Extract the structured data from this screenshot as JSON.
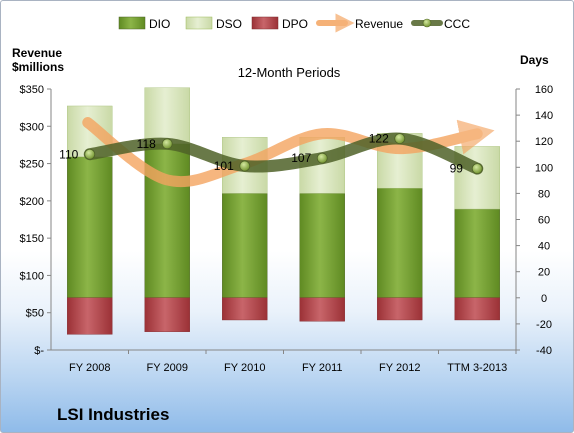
{
  "company": "LSI Industries",
  "chart_data": {
    "type": "bar",
    "subtitle": "12-Month Periods",
    "categories": [
      "FY 2008",
      "FY 2009",
      "FY 2010",
      "FY 2011",
      "FY 2012",
      "TTM 3-2013"
    ],
    "left_axis": {
      "label_line1": "Revenue",
      "label_line2": "$millions",
      "ylim": [
        0,
        350
      ],
      "ticks": [
        0,
        50,
        100,
        150,
        200,
        250,
        300,
        350
      ],
      "tick_labels": [
        "$-",
        "$50",
        "$100",
        "$150",
        "$200",
        "$250",
        "$300",
        "$350"
      ]
    },
    "right_axis": {
      "label": "Days",
      "ylim": [
        -40,
        160
      ],
      "ticks": [
        -40,
        -20,
        0,
        20,
        40,
        60,
        80,
        100,
        120,
        140,
        160
      ],
      "tick_labels": [
        "-40",
        "-20",
        "0",
        "20",
        "40",
        "60",
        "80",
        "100",
        "120",
        "140",
        "160"
      ]
    },
    "series": [
      {
        "name": "DIO",
        "axis": "right",
        "kind": "stacked-bar",
        "color": "#77a132",
        "values": [
          108,
          118,
          80,
          80,
          84,
          68
        ]
      },
      {
        "name": "DSO",
        "axis": "right",
        "kind": "stacked-bar",
        "color": "#d7e4bd",
        "values": [
          39,
          43,
          43,
          43,
          42,
          48
        ]
      },
      {
        "name": "DPO",
        "axis": "right",
        "kind": "negative-bar",
        "color": "#b84c50",
        "values": [
          -28,
          -26,
          -17,
          -18,
          -17,
          -17
        ]
      },
      {
        "name": "Revenue",
        "axis": "left",
        "kind": "line",
        "color": "#f4a460",
        "values": [
          305,
          228,
          250,
          290,
          270,
          290
        ]
      },
      {
        "name": "CCC",
        "axis": "right",
        "kind": "line",
        "color": "#4f6228",
        "values": [
          110,
          118,
          101,
          107,
          122,
          99
        ]
      }
    ],
    "ccc_labels": [
      "110",
      "118",
      "101",
      "107",
      "122",
      "99"
    ],
    "legend_position": "top",
    "grid": false
  },
  "colors": {
    "dio": "#77a132",
    "dso": "#d7e4bd",
    "dpo": "#b84c50",
    "revenue": "#f4a460",
    "ccc": "#4f6228",
    "ccc_marker": "#8db33f"
  }
}
